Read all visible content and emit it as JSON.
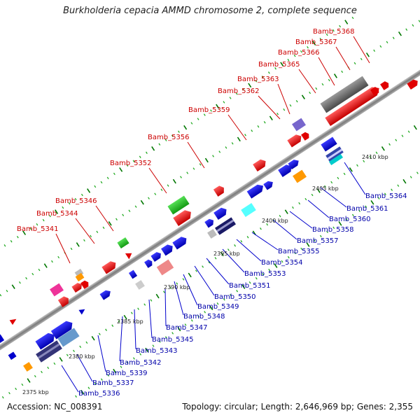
{
  "title": "Burkholderia cepacia AMMD chromosome 2, complete sequence",
  "footer": {
    "accession": "Accession: NC_008391",
    "summary": "Topology: circular; Length: 2,646,969 bp; Genes: 2,355"
  },
  "colors": {
    "upper_label": "#cc0000",
    "lower_label": "#0000aa",
    "upper_leader": "#cc0000",
    "lower_leader": "#0000cc",
    "backbone": "#8a8a8a",
    "tick_major": "#007700",
    "tick_minor": "#22aa22"
  },
  "scale_labels": [
    "2375 kbp",
    "2380 kbp",
    "2385 kbp",
    "2390 kbp",
    "2395 kbp",
    "2400 kbp",
    "2405 kbp",
    "2410 kbp"
  ],
  "upper_genes": [
    "Bamb_5341",
    "Bamb_5344",
    "Bamb_5346",
    "Bamb_5352",
    "Bamb_5356",
    "Bamb_5359",
    "Bamb_5362",
    "Bamb_5363",
    "Bamb_5365",
    "Bamb_5366",
    "Bamb_5367",
    "Bamb_5368"
  ],
  "lower_genes": [
    "Bamb_5336",
    "Bamb_5337",
    "Bamb_5339",
    "Bamb_5342",
    "Bamb_5343",
    "Bamb_5345",
    "Bamb_5347",
    "Bamb_5348",
    "Bamb_5349",
    "Bamb_5350",
    "Bamb_5351",
    "Bamb_5353",
    "Bamb_5354",
    "Bamb_5355",
    "Bamb_5357",
    "Bamb_5358",
    "Bamb_5360",
    "Bamb_5361",
    "Bamb_5364"
  ]
}
